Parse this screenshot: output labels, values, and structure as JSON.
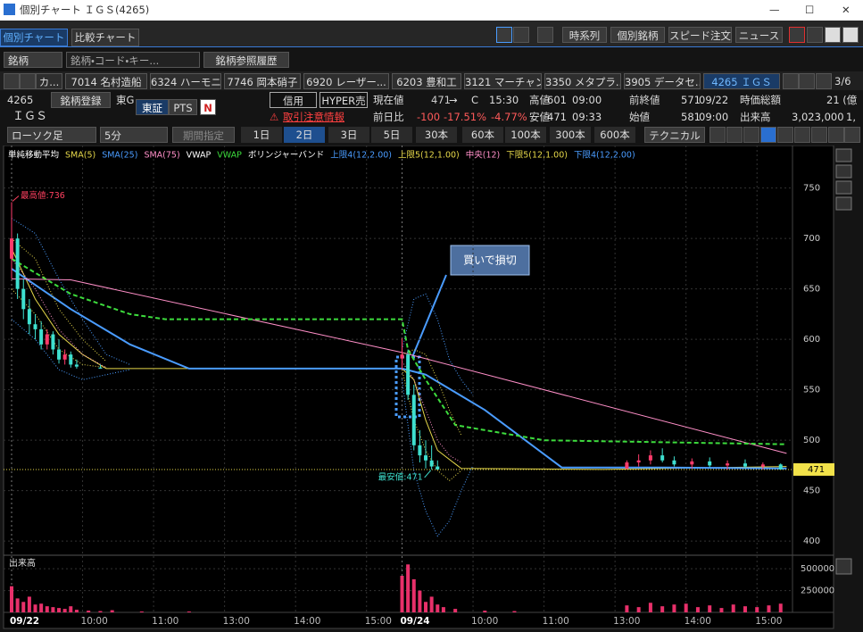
{
  "window": {
    "title": "個別チャート ＩＧＳ(4265)"
  },
  "tabs": [
    "個別チャート",
    "比較チャート"
  ],
  "toolbar": [
    "時系列",
    "個別銘柄",
    "スピード注文",
    "ニュース"
  ],
  "search": {
    "type": "銘柄",
    "placeholder": "銘柄・コード・キー...",
    "history": "銘柄参照履歴"
  },
  "stock_tabs": [
    "カ...",
    "7014 名村造船",
    "6324 ハーモニ...",
    "7746 岡本硝子",
    "6920 レーザー...",
    "6203 豊和工",
    "3121 マーチャント",
    "3350 メタプラ...",
    "3905 データセ...",
    "4265 ＩＧＳ"
  ],
  "page_indicator": "3/6",
  "quote": {
    "code": "4265",
    "register": "銘柄登録",
    "market": "東G",
    "name": "ＩＧＳ",
    "exchanges": [
      "東証",
      "PTS"
    ],
    "news_icon": "N",
    "margin": "信用",
    "hyper": "HYPER売",
    "warning": "取引注意情報",
    "current": {
      "label": "現在値",
      "value": "471",
      "arrow": "→",
      "flag": "C",
      "time": "15:30"
    },
    "high": {
      "label": "高値",
      "value": "601",
      "time": "09:00"
    },
    "prev_close": {
      "label": "前終値",
      "value": "571",
      "date": "09/22"
    },
    "market_cap": {
      "label": "時価総額",
      "value": "21 (億"
    },
    "change": {
      "label": "前日比",
      "value": "-100",
      "percent": "-17.51%",
      "extra": "-4.77%"
    },
    "low": {
      "label": "安値",
      "value": "471",
      "time": "09:33"
    },
    "open": {
      "label": "始値",
      "value": "581",
      "time": "09:00"
    },
    "volume": {
      "label": "出来高",
      "value": "3,023,000",
      "extra": "1,"
    }
  },
  "controls": {
    "chart_type": "ローソク足",
    "interval": "5分",
    "range": "期間指定",
    "periods": [
      "1日",
      "2日",
      "3日",
      "5日",
      "30本",
      "60本",
      "100本",
      "300本",
      "600本"
    ],
    "active_period": "2日",
    "technical": "テクニカル"
  },
  "chart_data": {
    "type": "candlestick",
    "legend_headers": [
      "単純移動平均",
      "VWAP",
      "ボリンジャーバンド"
    ],
    "xlim": [
      0,
      132
    ],
    "xticks": [
      {
        "value": 0,
        "label": "09/22"
      },
      {
        "value": 12,
        "label": "10:00"
      },
      {
        "value": 24,
        "label": "11:00"
      },
      {
        "value": 36,
        "label": "13:00"
      },
      {
        "value": 48,
        "label": "14:00"
      },
      {
        "value": 60,
        "label": "15:00"
      },
      {
        "value": 66,
        "label": "09/24"
      },
      {
        "value": 78,
        "label": "10:00"
      },
      {
        "value": 90,
        "label": "11:00"
      },
      {
        "value": 102,
        "label": "13:00"
      },
      {
        "value": 114,
        "label": "14:00"
      },
      {
        "value": 126,
        "label": "15:00"
      }
    ],
    "ylim": [
      386,
      786
    ],
    "yticks": [
      400,
      450,
      500,
      550,
      600,
      650,
      700,
      750
    ],
    "up_color": "#ff3b6b",
    "down_color": "#3ee0d0",
    "candles": {
      "x": [
        0,
        1,
        2,
        3,
        4,
        5,
        6,
        7,
        8,
        9,
        10,
        11,
        15,
        66,
        67,
        68,
        69,
        70,
        71,
        72,
        104,
        106,
        108,
        110,
        112,
        115,
        118,
        121,
        124,
        127,
        130
      ],
      "open": [
        680,
        700,
        650,
        630,
        615,
        610,
        595,
        605,
        590,
        580,
        585,
        575,
        572,
        581,
        585,
        545,
        495,
        485,
        480,
        474,
        472,
        478,
        480,
        485,
        480,
        476,
        479,
        475,
        477,
        474,
        476
      ],
      "high": [
        736,
        705,
        660,
        640,
        625,
        618,
        610,
        608,
        600,
        590,
        588,
        580,
        575,
        601,
        590,
        555,
        510,
        500,
        495,
        480,
        480,
        486,
        490,
        492,
        484,
        482,
        483,
        480,
        481,
        478,
        477
      ],
      "low": [
        660,
        640,
        620,
        605,
        600,
        590,
        590,
        585,
        576,
        575,
        572,
        571,
        571,
        570,
        540,
        490,
        478,
        472,
        471,
        471,
        471,
        474,
        476,
        478,
        474,
        472,
        473,
        471,
        472,
        471,
        471
      ],
      "close": [
        700,
        650,
        630,
        615,
        610,
        595,
        605,
        590,
        580,
        585,
        575,
        573,
        571,
        585,
        545,
        495,
        485,
        480,
        474,
        471,
        478,
        480,
        485,
        480,
        476,
        479,
        475,
        477,
        474,
        476,
        471
      ]
    },
    "series": [
      {
        "name": "SMA(5)",
        "color": "#e6d84a",
        "dash": "solid",
        "width": 1,
        "x": [
          0,
          4,
          8,
          12,
          16,
          66,
          68,
          70,
          72,
          76,
          100,
          131
        ],
        "values": [
          690,
          640,
          605,
          585,
          571,
          571,
          560,
          520,
          490,
          472,
          471,
          474
        ]
      },
      {
        "name": "SMA(25)",
        "color": "#4a9cff",
        "dash": "solid",
        "width": 2,
        "x": [
          0,
          5,
          10,
          20,
          30,
          66,
          70,
          80,
          93,
          110,
          131
        ],
        "values": [
          670,
          650,
          630,
          595,
          571,
          571,
          565,
          530,
          473,
          473,
          472
        ]
      },
      {
        "name": "SMA(75)",
        "color": "#ff8fc8",
        "dash": "solid",
        "width": 1,
        "x": [
          0,
          10,
          66,
          131
        ],
        "values": [
          660,
          659,
          587,
          487
        ]
      },
      {
        "name": "VWAP",
        "color": "#3ddc3d",
        "dash": "dashed",
        "width": 2,
        "x": [
          0,
          10,
          20,
          26,
          66,
          67,
          70,
          75,
          90,
          131
        ],
        "values": [
          680,
          645,
          625,
          620,
          620,
          590,
          560,
          515,
          500,
          496
        ]
      },
      {
        "name": "上限4(12,2.00)",
        "color": "#4a9cff",
        "dash": "dotted",
        "width": 1,
        "x": [
          0,
          4,
          8,
          12,
          16,
          20,
          40,
          66,
          68,
          70,
          72,
          74,
          76,
          78
        ],
        "values": [
          720,
          705,
          660,
          620,
          585,
          575,
          null,
          590,
          640,
          645,
          620,
          580,
          560,
          545
        ]
      },
      {
        "name": "上限5(12,1.00)",
        "color": "#e6d84a",
        "dash": "dotted",
        "width": 1,
        "x": [
          0,
          4,
          8,
          12,
          16,
          40,
          66,
          68,
          70,
          72,
          74,
          76
        ],
        "values": [
          700,
          680,
          630,
          600,
          578,
          null,
          585,
          590,
          585,
          560,
          530,
          505
        ]
      },
      {
        "name": "中央(12)",
        "color": "#ff8fc8",
        "dash": "dotted",
        "width": 1,
        "x": [
          0,
          4,
          8,
          12,
          16,
          40,
          66,
          68,
          70,
          72,
          74,
          76
        ],
        "values": [
          680,
          650,
          610,
          585,
          572,
          null,
          578,
          560,
          530,
          500,
          485,
          478
        ]
      },
      {
        "name": "下限5(12,1.00)",
        "color": "#e6d84a",
        "dash": "dotted",
        "width": 1,
        "x": [
          0,
          4,
          8,
          12,
          16,
          40,
          66,
          68,
          70,
          72,
          74,
          76
        ],
        "values": [
          650,
          625,
          590,
          575,
          572,
          null,
          570,
          520,
          490,
          470,
          460,
          470
        ]
      },
      {
        "name": "下限4(12,2.00)",
        "color": "#4a9cff",
        "dash": "dotted",
        "width": 1,
        "x": [
          0,
          4,
          8,
          12,
          16,
          20,
          40,
          66,
          68,
          70,
          72,
          74,
          76,
          78
        ],
        "values": [
          620,
          600,
          570,
          560,
          565,
          570,
          null,
          560,
          470,
          430,
          405,
          420,
          450,
          475
        ]
      }
    ],
    "last_price": 471,
    "annotations": [
      {
        "text": "最高値:736"
      },
      {
        "text": "最安値:471"
      }
    ],
    "callout": "買いで損切",
    "volume": {
      "title": "出来高",
      "color": "#e8306a",
      "ylim": [
        0,
        594000
      ],
      "yticks": [
        250000,
        500000
      ],
      "x": [
        0,
        1,
        2,
        3,
        4,
        5,
        6,
        7,
        8,
        9,
        10,
        11,
        13,
        15,
        17,
        22,
        30,
        66,
        67,
        68,
        69,
        70,
        71,
        72,
        73,
        75,
        80,
        85,
        104,
        106,
        108,
        110,
        112,
        114,
        116,
        118,
        120,
        122,
        124,
        126,
        128,
        130
      ],
      "values": [
        300000,
        160000,
        120000,
        180000,
        90000,
        100000,
        70000,
        60000,
        50000,
        40000,
        70000,
        30000,
        20000,
        15000,
        25000,
        10000,
        10000,
        420000,
        550000,
        380000,
        250000,
        120000,
        180000,
        90000,
        60000,
        40000,
        20000,
        15000,
        80000,
        60000,
        110000,
        70000,
        90000,
        100000,
        60000,
        80000,
        50000,
        90000,
        70000,
        60000,
        80000,
        100000
      ]
    }
  }
}
